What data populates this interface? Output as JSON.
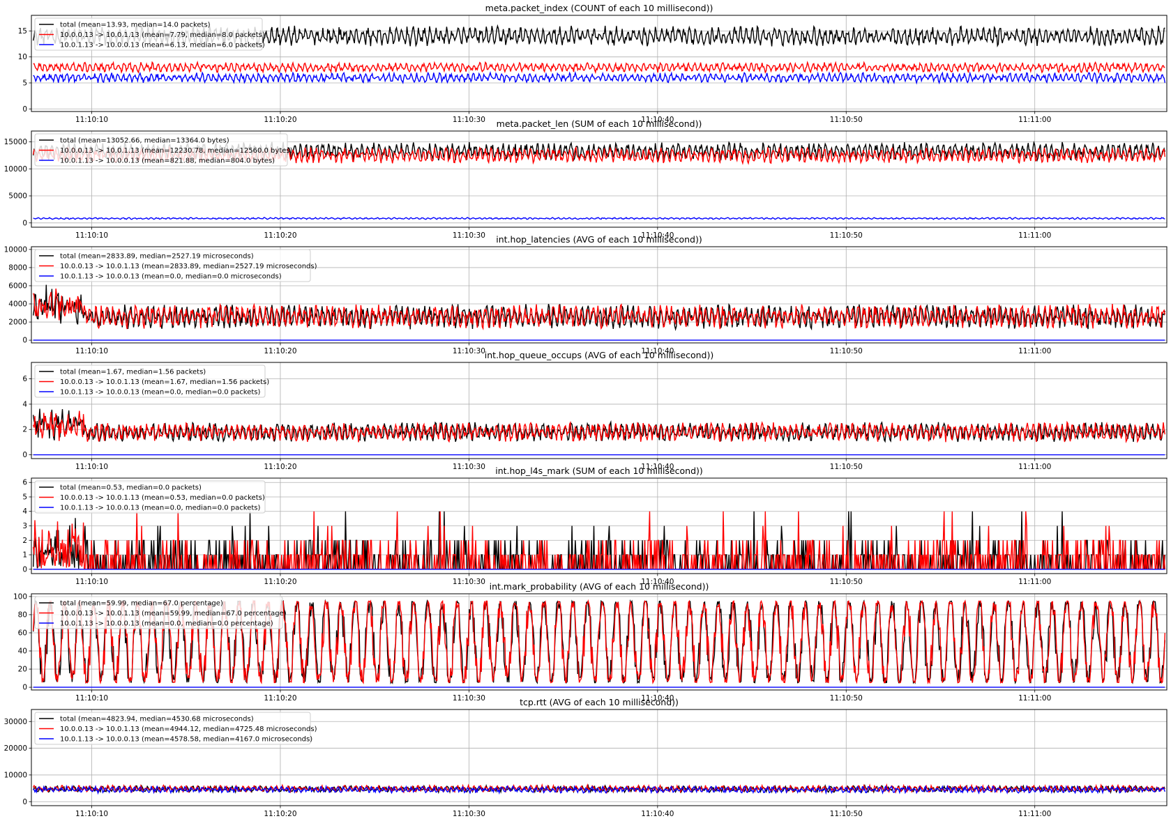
{
  "chart_data": [
    {
      "type": "line",
      "title": "meta.packet_index (COUNT of each 10 millisecond))",
      "x_ticks": [
        "11:10:10",
        "11:10:20",
        "11:10:30",
        "11:10:40",
        "11:10:50",
        "11:11:00"
      ],
      "x_range": [
        "11:10:06.8",
        "11:11:07"
      ],
      "ylim": [
        -0.5,
        18
      ],
      "y_ticks": [
        0,
        5,
        10,
        15
      ],
      "grid": true,
      "legend_position": "top-left",
      "series": [
        {
          "name": "total (mean=13.93, median=14.0 packets)",
          "color": "#000000",
          "low": 12,
          "high": 16
        },
        {
          "name": "10.0.0.13 -> 10.0.1.13 (mean=7.79, median=8.0 packets)",
          "color": "#ff0000",
          "low": 7,
          "high": 9
        },
        {
          "name": "10.0.1.13 -> 10.0.0.13 (mean=6.13, median=6.0 packets)",
          "color": "#0000ff",
          "low": 5,
          "high": 7
        }
      ]
    },
    {
      "type": "line",
      "title": "meta.packet_len (SUM of each 10 millisecond))",
      "x_ticks": [
        "11:10:10",
        "11:10:20",
        "11:10:30",
        "11:10:40",
        "11:10:50",
        "11:11:00"
      ],
      "x_range": [
        "11:10:06.8",
        "11:11:07"
      ],
      "ylim": [
        -800,
        17000
      ],
      "y_ticks": [
        0,
        5000,
        10000,
        15000
      ],
      "grid": true,
      "legend_position": "top-left",
      "series": [
        {
          "name": "total (mean=13052.66, median=13364.0 bytes)",
          "color": "#000000",
          "low": 11500,
          "high": 15000
        },
        {
          "name": "10.0.0.13 -> 10.0.1.13 (mean=12230.78, median=12560.0 bytes)",
          "color": "#ff0000",
          "low": 11000,
          "high": 14000
        },
        {
          "name": "10.0.1.13 -> 10.0.0.13 (mean=821.88, median=804.0 bytes)",
          "color": "#0000ff",
          "low": 650,
          "high": 1000
        }
      ]
    },
    {
      "type": "line",
      "title": "int.hop_latencies (AVG of each 10 millisecond))",
      "x_ticks": [
        "11:10:10",
        "11:10:20",
        "11:10:30",
        "11:10:40",
        "11:10:50",
        "11:11:00"
      ],
      "x_range": [
        "11:10:06.8",
        "11:11:07"
      ],
      "ylim": [
        -300,
        10300
      ],
      "y_ticks": [
        0,
        2000,
        4000,
        6000,
        8000,
        10000
      ],
      "grid": true,
      "legend_position": "top-left",
      "series": [
        {
          "name": "total (mean=2833.89, median=2527.19 microseconds)",
          "color": "#000000",
          "low": 1200,
          "high": 4000
        },
        {
          "name": "10.0.0.13 -> 10.0.1.13 (mean=2833.89, median=2527.19 microseconds)",
          "color": "#ff0000",
          "low": 1200,
          "high": 4000
        },
        {
          "name": "10.0.1.13 -> 10.0.0.13 (mean=0.0, median=0.0 microseconds)",
          "color": "#0000ff",
          "low": 0,
          "high": 0
        }
      ]
    },
    {
      "type": "line",
      "title": "int.hop_queue_occups (AVG of each 10 millisecond))",
      "x_ticks": [
        "11:10:10",
        "11:10:20",
        "11:10:30",
        "11:10:40",
        "11:10:50",
        "11:11:00"
      ],
      "x_range": [
        "11:10:06.8",
        "11:11:07"
      ],
      "ylim": [
        -0.3,
        7.3
      ],
      "y_ticks": [
        0,
        2,
        4,
        6
      ],
      "grid": true,
      "legend_position": "top-left",
      "series": [
        {
          "name": "total (mean=1.67, median=1.56 packets)",
          "color": "#000000",
          "low": 1,
          "high": 2.6
        },
        {
          "name": "10.0.0.13 -> 10.0.1.13 (mean=1.67, median=1.56 packets)",
          "color": "#ff0000",
          "low": 1,
          "high": 2.6
        },
        {
          "name": "10.0.1.13 -> 10.0.0.13 (mean=0.0, median=0.0 packets)",
          "color": "#0000ff",
          "low": 0,
          "high": 0
        }
      ]
    },
    {
      "type": "line",
      "title": "int.hop_l4s_mark (SUM of each 10 millisecond))",
      "x_ticks": [
        "11:10:10",
        "11:10:20",
        "11:10:30",
        "11:10:40",
        "11:10:50",
        "11:11:00"
      ],
      "x_range": [
        "11:10:06.8",
        "11:11:07"
      ],
      "ylim": [
        -0.3,
        6.3
      ],
      "y_ticks": [
        0,
        1,
        2,
        3,
        4,
        5,
        6
      ],
      "grid": true,
      "legend_position": "top-left",
      "series": [
        {
          "name": "total (mean=0.53, median=0.0 packets)",
          "color": "#000000",
          "low": 0,
          "high": 2
        },
        {
          "name": "10.0.0.13 -> 10.0.1.13 (mean=0.53, median=0.0 packets)",
          "color": "#ff0000",
          "low": 0,
          "high": 2
        },
        {
          "name": "10.0.1.13 -> 10.0.0.13 (mean=0.0, median=0.0 packets)",
          "color": "#0000ff",
          "low": 0,
          "high": 0
        }
      ]
    },
    {
      "type": "line",
      "title": "int.mark_probability (AVG of each 10 millisecond))",
      "x_ticks": [
        "11:10:10",
        "11:10:20",
        "11:10:30",
        "11:10:40",
        "11:10:50",
        "11:11:00"
      ],
      "x_range": [
        "11:10:06.8",
        "11:11:07"
      ],
      "ylim": [
        -3,
        103
      ],
      "y_ticks": [
        0,
        20,
        40,
        60,
        80,
        100
      ],
      "grid": true,
      "legend_position": "top-left",
      "series": [
        {
          "name": "total (mean=59.99, median=67.0 percentage)",
          "color": "#000000",
          "low": 5,
          "high": 95
        },
        {
          "name": "10.0.0.13 -> 10.0.1.13 (mean=59.99, median=67.0 percentage)",
          "color": "#ff0000",
          "low": 5,
          "high": 95
        },
        {
          "name": "10.0.1.13 -> 10.0.0.13 (mean=0.0, median=0.0 percentage)",
          "color": "#0000ff",
          "low": 0,
          "high": 0
        }
      ]
    },
    {
      "type": "line",
      "title": "tcp.rtt (AVG of each 10 millisecond))",
      "x_ticks": [
        "11:10:10",
        "11:10:20",
        "11:10:30",
        "11:10:40",
        "11:10:50",
        "11:11:00"
      ],
      "x_range": [
        "11:10:06.8",
        "11:11:07"
      ],
      "ylim": [
        -1500,
        34500
      ],
      "y_ticks": [
        0,
        10000,
        20000,
        30000
      ],
      "grid": true,
      "legend_position": "top-left",
      "series": [
        {
          "name": "total (mean=4823.94, median=4530.68 microseconds)",
          "color": "#000000",
          "low": 3500,
          "high": 6000
        },
        {
          "name": "10.0.0.13 -> 10.0.1.13 (mean=4944.12, median=4725.48 microseconds)",
          "color": "#ff0000",
          "low": 3500,
          "high": 6200
        },
        {
          "name": "10.0.1.13 -> 10.0.0.13 (mean=4578.58, median=4167.0 microseconds)",
          "color": "#0000ff",
          "low": 3200,
          "high": 5800
        }
      ]
    }
  ]
}
